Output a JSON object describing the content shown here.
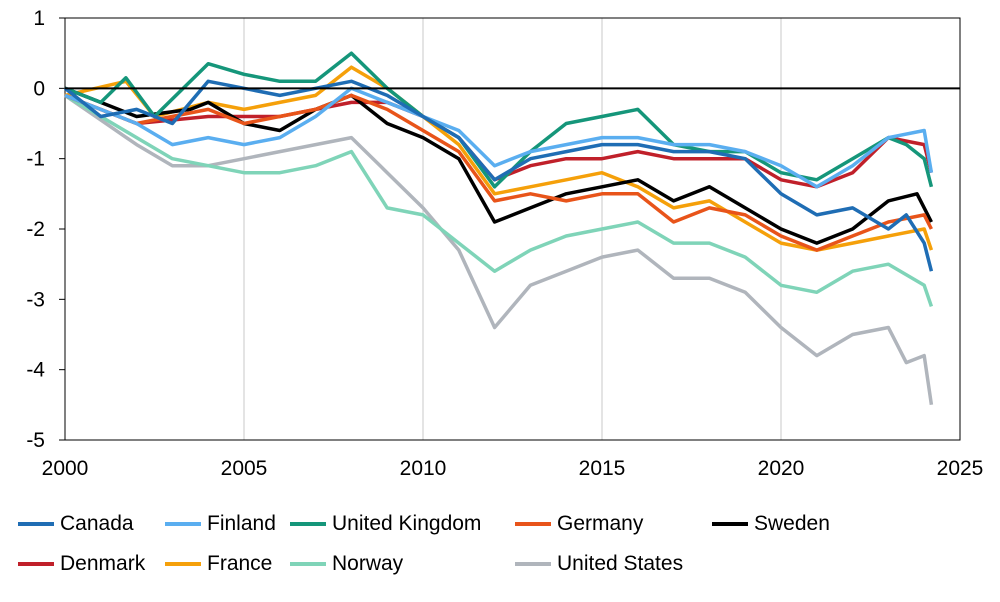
{
  "chart_data": {
    "type": "line",
    "title": "",
    "xlabel": "",
    "ylabel": "",
    "xlim": [
      2000,
      2025
    ],
    "ylim": [
      -5,
      1
    ],
    "xticks": [
      2000,
      2005,
      2010,
      2015,
      2020,
      2025
    ],
    "yticks": [
      1,
      0,
      -1,
      -2,
      -3,
      -4,
      -5
    ],
    "grid": "vertical",
    "legend_position": "bottom",
    "series": [
      {
        "name": "Canada",
        "color": "#1f6db4",
        "x": [
          2000,
          2001,
          2002,
          2003,
          2004,
          2005,
          2006,
          2007,
          2008,
          2009,
          2010,
          2011,
          2012,
          2013,
          2014,
          2015,
          2016,
          2017,
          2018,
          2019,
          2020,
          2021,
          2022,
          2023,
          2023.5,
          2024,
          2024.2
        ],
        "y": [
          0,
          -0.4,
          -0.3,
          -0.5,
          0.1,
          0,
          -0.1,
          0,
          0.1,
          -0.1,
          -0.4,
          -0.7,
          -1.3,
          -1,
          -0.9,
          -0.8,
          -0.8,
          -0.9,
          -0.9,
          -1,
          -1.5,
          -1.8,
          -1.7,
          -2,
          -1.8,
          -2.2,
          -2.6
        ]
      },
      {
        "name": "Finland",
        "color": "#5aaef0",
        "x": [
          2000,
          2002,
          2003,
          2004,
          2005,
          2006,
          2007,
          2008,
          2009,
          2010,
          2011,
          2012,
          2013,
          2014,
          2015,
          2016,
          2017,
          2018,
          2019,
          2020,
          2021,
          2022,
          2023,
          2024,
          2024.2
        ],
        "y": [
          -0.1,
          -0.5,
          -0.8,
          -0.7,
          -0.8,
          -0.7,
          -0.4,
          0,
          -0.2,
          -0.4,
          -0.6,
          -1.1,
          -0.9,
          -0.8,
          -0.7,
          -0.7,
          -0.8,
          -0.8,
          -0.9,
          -1.1,
          -1.4,
          -1.1,
          -0.7,
          -0.6,
          -1.2
        ]
      },
      {
        "name": "United Kingdom",
        "color": "#15967a",
        "x": [
          2000,
          2001,
          2001.7,
          2002.5,
          2004,
          2005,
          2006,
          2007,
          2008,
          2009,
          2010,
          2011,
          2012,
          2013,
          2014,
          2015,
          2016,
          2017,
          2018,
          2019,
          2020,
          2021,
          2022,
          2023,
          2023.5,
          2024,
          2024.2
        ],
        "y": [
          0,
          -0.2,
          0.15,
          -0.4,
          0.35,
          0.2,
          0.1,
          0.1,
          0.5,
          0,
          -0.4,
          -0.7,
          -1.4,
          -0.9,
          -0.5,
          -0.4,
          -0.3,
          -0.8,
          -0.9,
          -0.9,
          -1.2,
          -1.3,
          -1,
          -0.7,
          -0.8,
          -1,
          -1.4
        ]
      },
      {
        "name": "Germany",
        "color": "#e8541a",
        "x": [
          2000,
          2002,
          2004,
          2005,
          2007,
          2008,
          2009,
          2010,
          2011,
          2012,
          2013,
          2014,
          2015,
          2016,
          2017,
          2018,
          2019,
          2020,
          2021,
          2022,
          2023,
          2024,
          2024.2
        ],
        "y": [
          -0.1,
          -0.5,
          -0.3,
          -0.5,
          -0.3,
          -0.1,
          -0.3,
          -0.6,
          -0.9,
          -1.6,
          -1.5,
          -1.6,
          -1.5,
          -1.5,
          -1.9,
          -1.7,
          -1.8,
          -2.1,
          -2.3,
          -2.1,
          -1.9,
          -1.8,
          -2
        ]
      },
      {
        "name": "Sweden",
        "color": "#000000",
        "x": [
          2000,
          2002,
          2003.5,
          2004,
          2005,
          2006,
          2007,
          2008,
          2009,
          2010,
          2011,
          2012,
          2013,
          2014,
          2015,
          2016,
          2017,
          2018,
          2019,
          2020,
          2021,
          2022,
          2023,
          2023.8,
          2024.2
        ],
        "y": [
          0,
          -0.4,
          -0.3,
          -0.2,
          -0.5,
          -0.6,
          -0.3,
          -0.1,
          -0.5,
          -0.7,
          -1,
          -1.9,
          -1.7,
          -1.5,
          -1.4,
          -1.3,
          -1.6,
          -1.4,
          -1.7,
          -2,
          -2.2,
          -2,
          -1.6,
          -1.5,
          -1.9
        ]
      },
      {
        "name": "Denmark",
        "color": "#c0202a",
        "x": [
          2000,
          2002,
          2004,
          2005,
          2006,
          2007,
          2008,
          2009,
          2010,
          2011,
          2012,
          2013,
          2014,
          2015,
          2016,
          2017,
          2018,
          2019,
          2020,
          2021,
          2022,
          2023,
          2024,
          2024.2
        ],
        "y": [
          -0.1,
          -0.5,
          -0.4,
          -0.4,
          -0.4,
          -0.3,
          -0.2,
          -0.2,
          -0.4,
          -0.7,
          -1.3,
          -1.1,
          -1,
          -1,
          -0.9,
          -1,
          -1,
          -1,
          -1.3,
          -1.4,
          -1.2,
          -0.7,
          -0.8,
          -1.2
        ]
      },
      {
        "name": "France",
        "color": "#f5a00a",
        "x": [
          2000,
          2001.7,
          2002.5,
          2004,
          2005,
          2006,
          2007,
          2008,
          2009,
          2010,
          2011,
          2012,
          2013,
          2014,
          2015,
          2016,
          2017,
          2018,
          2019,
          2020,
          2021,
          2022,
          2023,
          2024,
          2024.2
        ],
        "y": [
          -0.1,
          0.1,
          -0.4,
          -0.2,
          -0.3,
          -0.2,
          -0.1,
          0.3,
          0,
          -0.4,
          -0.8,
          -1.5,
          -1.4,
          -1.3,
          -1.2,
          -1.4,
          -1.7,
          -1.6,
          -1.9,
          -2.2,
          -2.3,
          -2.2,
          -2.1,
          -2,
          -2.3
        ]
      },
      {
        "name": "Norway",
        "color": "#7fd4b8",
        "x": [
          2000,
          2002,
          2003,
          2004,
          2005,
          2006,
          2007,
          2008,
          2009,
          2010,
          2011,
          2012,
          2013,
          2014,
          2015,
          2016,
          2017,
          2018,
          2019,
          2020,
          2021,
          2022,
          2023,
          2024,
          2024.2
        ],
        "y": [
          -0.1,
          -0.7,
          -1,
          -1.1,
          -1.2,
          -1.2,
          -1.1,
          -0.9,
          -1.7,
          -1.8,
          -2.2,
          -2.6,
          -2.3,
          -2.1,
          -2,
          -1.9,
          -2.2,
          -2.2,
          -2.4,
          -2.8,
          -2.9,
          -2.6,
          -2.5,
          -2.8,
          -3.1
        ]
      },
      {
        "name": "United States",
        "color": "#b0b5bc",
        "x": [
          2000,
          2002,
          2003,
          2004,
          2005,
          2006,
          2007,
          2008,
          2009,
          2010,
          2011,
          2012,
          2013,
          2014,
          2015,
          2016,
          2017,
          2018,
          2019,
          2020,
          2021,
          2022,
          2023,
          2023.5,
          2024,
          2024.2
        ],
        "y": [
          -0.1,
          -0.8,
          -1.1,
          -1.1,
          -1,
          -0.9,
          -0.8,
          -0.7,
          -1.2,
          -1.7,
          -2.3,
          -3.4,
          -2.8,
          -2.6,
          -2.4,
          -2.3,
          -2.7,
          -2.7,
          -2.9,
          -3.4,
          -3.8,
          -3.5,
          -3.4,
          -3.9,
          -3.8,
          -4.5
        ]
      }
    ]
  }
}
